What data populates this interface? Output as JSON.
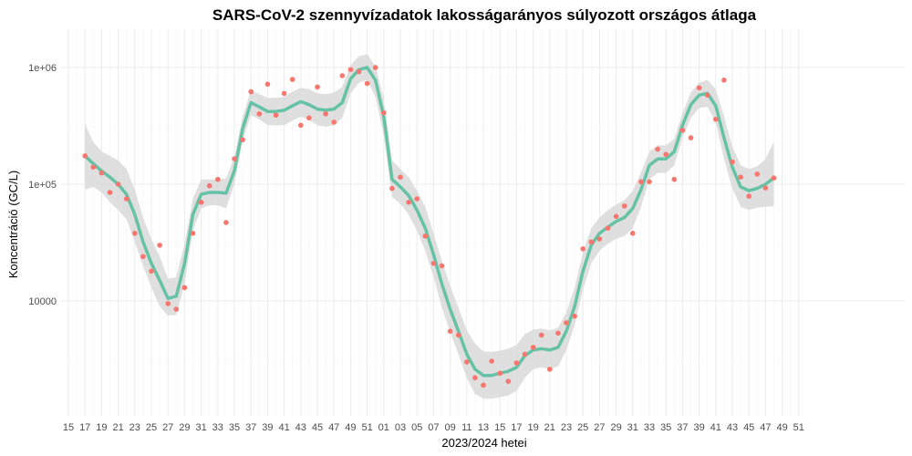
{
  "chart_data": {
    "type": "line",
    "title": "SARS-CoV-2 szennyvízadatok lakosságarányos súlyozott országos átlaga",
    "xlabel": "2023/2024 hetei",
    "ylabel": "Koncentráció (GC/L)",
    "y_scale": "log10",
    "ylim": [
      1800,
      1600000
    ],
    "y_ticks": [
      {
        "value": 1000000,
        "label": "1e+06"
      },
      {
        "value": 100000,
        "label": "1e+05"
      },
      {
        "value": 10000,
        "label": "10000"
      }
    ],
    "x_tick_labels": [
      "15",
      "17",
      "19",
      "21",
      "23",
      "25",
      "27",
      "29",
      "31",
      "33",
      "35",
      "37",
      "39",
      "41",
      "43",
      "45",
      "47",
      "49",
      "51",
      "01",
      "03",
      "05",
      "07",
      "09",
      "11",
      "13",
      "15",
      "17",
      "19",
      "21",
      "23",
      "25",
      "27",
      "29",
      "31",
      "33",
      "35",
      "37",
      "39",
      "41",
      "43",
      "45",
      "47",
      "49",
      "51"
    ],
    "categories": [
      "2023-17",
      "2023-18",
      "2023-19",
      "2023-20",
      "2023-21",
      "2023-22",
      "2023-23",
      "2023-24",
      "2023-25",
      "2023-26",
      "2023-27",
      "2023-28",
      "2023-29",
      "2023-30",
      "2023-31",
      "2023-32",
      "2023-33",
      "2023-34",
      "2023-35",
      "2023-36",
      "2023-37",
      "2023-38",
      "2023-39",
      "2023-40",
      "2023-41",
      "2023-42",
      "2023-43",
      "2023-44",
      "2023-45",
      "2023-46",
      "2023-47",
      "2023-48",
      "2023-49",
      "2023-50",
      "2023-51",
      "2023-52",
      "2024-01",
      "2024-02",
      "2024-03",
      "2024-04",
      "2024-05",
      "2024-06",
      "2024-07",
      "2024-08",
      "2024-09",
      "2024-10",
      "2024-11",
      "2024-12",
      "2024-13",
      "2024-14",
      "2024-15",
      "2024-16",
      "2024-17",
      "2024-18",
      "2024-19",
      "2024-20",
      "2024-21",
      "2024-22",
      "2024-23",
      "2024-24",
      "2024-25",
      "2024-26",
      "2024-27",
      "2024-28",
      "2024-29",
      "2024-30",
      "2024-31",
      "2024-32",
      "2024-33",
      "2024-34",
      "2024-35",
      "2024-36",
      "2024-37",
      "2024-38",
      "2024-39",
      "2024-40",
      "2024-41",
      "2024-42",
      "2024-43",
      "2024-44",
      "2024-45",
      "2024-46",
      "2024-47",
      "2024-48"
    ],
    "points": [
      175000,
      140000,
      125000,
      85000,
      100000,
      75000,
      38000,
      24000,
      18000,
      30000,
      9500,
      8500,
      13000,
      38000,
      70000,
      97000,
      110000,
      47000,
      165000,
      240000,
      620000,
      400000,
      720000,
      390000,
      600000,
      790000,
      320000,
      370000,
      680000,
      400000,
      340000,
      850000,
      960000,
      920000,
      730000,
      1000000,
      410000,
      92000,
      115000,
      70000,
      75000,
      36000,
      21000,
      20000,
      5500,
      5100,
      3000,
      2200,
      1900,
      3050,
      2400,
      2050,
      2950,
      3500,
      4000,
      5100,
      2600,
      5300,
      6500,
      7400,
      28000,
      32000,
      34000,
      42000,
      53000,
      65000,
      38000,
      105000,
      105000,
      200000,
      180000,
      110000,
      290000,
      250000,
      670000,
      580000,
      360000,
      780000,
      155000,
      115000,
      79000,
      122000,
      93000,
      113000
    ],
    "series": [
      {
        "values": [
          175000,
          150000,
          130000,
          115000,
          100000,
          82000,
          55000,
          32000,
          21000,
          15000,
          10500,
          11000,
          21000,
          55000,
          82000,
          85000,
          85000,
          84000,
          130000,
          300000,
          500000,
          460000,
          420000,
          420000,
          430000,
          470000,
          510000,
          480000,
          440000,
          430000,
          440000,
          500000,
          800000,
          960000,
          1000000,
          780000,
          380000,
          110000,
          95000,
          80000,
          60000,
          42000,
          25000,
          14000,
          8500,
          5500,
          3500,
          2600,
          2300,
          2300,
          2400,
          2500,
          2700,
          3400,
          3800,
          3900,
          3800,
          4000,
          5500,
          9000,
          18000,
          30000,
          38000,
          43000,
          48000,
          52000,
          62000,
          90000,
          145000,
          165000,
          165000,
          190000,
          320000,
          480000,
          580000,
          600000,
          470000,
          250000,
          140000,
          95000,
          88000,
          92000,
          100000,
          113000
        ],
        "ci_low": [
          90000,
          95000,
          85000,
          70000,
          60000,
          50000,
          32000,
          20000,
          13000,
          9000,
          7500,
          7600,
          14000,
          40000,
          62000,
          66000,
          66000,
          62000,
          100000,
          235000,
          390000,
          360000,
          320000,
          320000,
          320000,
          350000,
          380000,
          355000,
          320000,
          310000,
          320000,
          370000,
          600000,
          740000,
          780000,
          560000,
          260000,
          78000,
          68000,
          55000,
          40000,
          27000,
          16000,
          8800,
          5400,
          3500,
          2200,
          1600,
          1450,
          1450,
          1500,
          1550,
          1700,
          2200,
          2600,
          2700,
          2600,
          2750,
          3800,
          6200,
          12500,
          21000,
          27000,
          31000,
          34000,
          36000,
          42000,
          64000,
          110000,
          125000,
          125000,
          145000,
          250000,
          370000,
          450000,
          460000,
          340000,
          165000,
          92000,
          64000,
          60000,
          63000,
          64000,
          65000
        ],
        "ci_high": [
          330000,
          230000,
          190000,
          175000,
          160000,
          135000,
          90000,
          52000,
          34000,
          24000,
          15500,
          16000,
          31000,
          75000,
          110000,
          110000,
          110000,
          112000,
          170000,
          380000,
          640000,
          590000,
          550000,
          550000,
          560000,
          620000,
          670000,
          650000,
          600000,
          590000,
          610000,
          680000,
          1050000,
          1250000,
          1300000,
          1020000,
          540000,
          160000,
          135000,
          115000,
          88000,
          64000,
          38000,
          22000,
          13500,
          8700,
          5600,
          4300,
          3700,
          3650,
          3750,
          3900,
          4200,
          5200,
          5700,
          5800,
          5600,
          5900,
          8000,
          13000,
          26000,
          42000,
          52000,
          60000,
          67000,
          73000,
          88000,
          126000,
          190000,
          215000,
          215000,
          245000,
          410000,
          610000,
          740000,
          780000,
          650000,
          380000,
          210000,
          145000,
          135000,
          142000,
          165000,
          230000
        ]
      }
    ],
    "colors": {
      "points": "#F8766D",
      "line": "#66C2A5",
      "ribbon": "#d9d9d9",
      "grid": "#ebebeb",
      "background": "#ffffff"
    },
    "grid": true,
    "legend": "none"
  }
}
